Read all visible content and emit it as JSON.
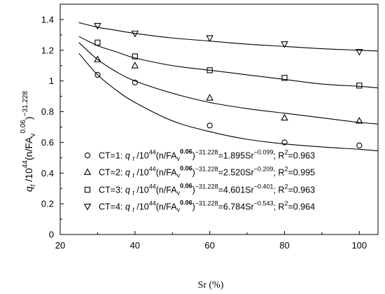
{
  "chart_data": {
    "type": "scatter",
    "xlabel": "Sr (%)",
    "ylabel": {
      "q": "q",
      "t": "t",
      "mid": " /10",
      "e44": "44",
      "paren": "(n/FA",
      "v": "v",
      "exp": "0.06",
      "close": ")",
      "pow": "−31.228"
    },
    "xlim": [
      20,
      105
    ],
    "ylim": [
      0,
      1.5
    ],
    "xticks": [
      20,
      40,
      60,
      80,
      100
    ],
    "xtick_labels": [
      "20",
      "40",
      "60",
      "80",
      "100"
    ],
    "yticks": [
      0,
      0.2,
      0.4,
      0.6,
      0.8,
      1.0,
      1.2,
      1.4
    ],
    "ytick_labels": [
      "0",
      "0.2",
      "0.4",
      "0.6",
      "0.8",
      "1",
      "1.2",
      "1.4"
    ],
    "grid": false,
    "legend_position": "bottom-center",
    "series": [
      {
        "name": "CT=1",
        "marker": "circle",
        "x": [
          30,
          40,
          60,
          80,
          100
        ],
        "y": [
          1.04,
          0.99,
          0.71,
          0.6,
          0.58
        ],
        "fit": {
          "a": 1.895,
          "b": -0.099,
          "r2": "0.963"
        },
        "legend": {
          "pre": "CT=1: ",
          "q": "q",
          "t": "t",
          "mid": " /10",
          "e44": "44",
          "paren": "(n/FA",
          "v": "v",
          "exp": "0.06",
          "close": ")",
          "pow": "−31.228",
          "eq": "=1.895Sr",
          "b": "−0.099",
          "r2": "; R",
          "r2exp": "2",
          "r2val": "=0.963"
        }
      },
      {
        "name": "CT=2",
        "marker": "triangle-up",
        "x": [
          30,
          40,
          60,
          80,
          100
        ],
        "y": [
          1.14,
          1.1,
          0.89,
          0.76,
          0.74
        ],
        "fit": {
          "a": 2.52,
          "b": -0.209,
          "r2": "0.995"
        },
        "legend": {
          "pre": "CT=2: ",
          "q": "q",
          "t": "t",
          "mid": " /10",
          "e44": "44",
          "paren": "(n/FA",
          "v": "v",
          "exp": "0.06",
          "close": ")",
          "pow": "−31.228",
          "eq": "=2.520Sr",
          "b": "−0.209",
          "r2": "; R",
          "r2exp": "2",
          "r2val": "=0.995"
        }
      },
      {
        "name": "CT=3",
        "marker": "square",
        "x": [
          30,
          40,
          60,
          80,
          100
        ],
        "y": [
          1.25,
          1.16,
          1.07,
          1.02,
          0.97
        ],
        "fit": {
          "a": 4.601,
          "b": -0.401,
          "r2": "0.963"
        },
        "legend": {
          "pre": "CT=3: ",
          "q": "q",
          "t": "t",
          "mid": " /10",
          "e44": "44",
          "paren": "(n/FA",
          "v": "v",
          "exp": "0.06",
          "close": ")",
          "pow": "−31.228",
          "eq": "=4.601Sr",
          "b": "−0.401",
          "r2": "; R",
          "r2exp": "2",
          "r2val": "=0.963"
        }
      },
      {
        "name": "CT=4",
        "marker": "triangle-down",
        "x": [
          30,
          40,
          60,
          80,
          100
        ],
        "y": [
          1.36,
          1.31,
          1.28,
          1.24,
          1.19
        ],
        "fit": {
          "a": 6.784,
          "b": -0.543,
          "r2": "0.964"
        },
        "legend": {
          "pre": "CT=4: ",
          "q": "q",
          "t": "t",
          "mid": " /10",
          "e44": "44",
          "paren": "(n/FA",
          "v": "v",
          "exp": "0.06",
          "close": ")",
          "pow": "−31.228",
          "eq": "=6.784Sr",
          "b": "−0.543",
          "r2": "; R",
          "r2exp": "2",
          "r2val": "=0.964"
        }
      }
    ],
    "fit_curves": [
      {
        "name": "CT=1 fit",
        "x": [
          25,
          30,
          35,
          40,
          50,
          60,
          70,
          80,
          90,
          100,
          105
        ],
        "y": [
          1.18,
          1.04,
          0.94,
          0.86,
          0.74,
          0.67,
          0.62,
          0.59,
          0.57,
          0.555,
          0.545
        ]
      },
      {
        "name": "CT=2 fit",
        "x": [
          25,
          30,
          35,
          40,
          50,
          60,
          70,
          80,
          90,
          100,
          105
        ],
        "y": [
          1.25,
          1.14,
          1.06,
          1.0,
          0.92,
          0.86,
          0.82,
          0.79,
          0.76,
          0.73,
          0.72
        ]
      },
      {
        "name": "CT=3 fit",
        "x": [
          25,
          30,
          35,
          40,
          50,
          60,
          70,
          80,
          90,
          100,
          105
        ],
        "y": [
          1.29,
          1.23,
          1.19,
          1.15,
          1.1,
          1.07,
          1.04,
          1.01,
          0.98,
          0.965,
          0.955
        ]
      },
      {
        "name": "CT=4 fit",
        "x": [
          25,
          30,
          35,
          40,
          50,
          60,
          70,
          80,
          90,
          100,
          105
        ],
        "y": [
          1.38,
          1.35,
          1.33,
          1.31,
          1.28,
          1.26,
          1.24,
          1.225,
          1.21,
          1.2,
          1.195
        ]
      }
    ]
  }
}
